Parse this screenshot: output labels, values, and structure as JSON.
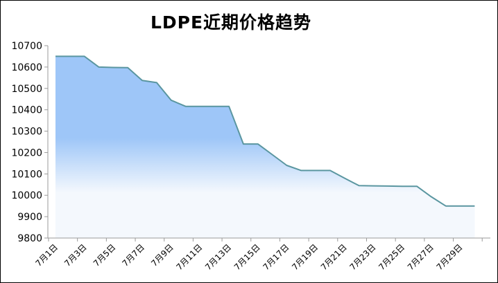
{
  "chart_data": {
    "type": "area",
    "title": "LDPE近期价格趋势",
    "xlabel": "",
    "ylabel": "",
    "ylim": [
      9800,
      10700
    ],
    "yticks": [
      9800,
      9900,
      10000,
      10100,
      10200,
      10300,
      10400,
      10500,
      10600,
      10700
    ],
    "x_tick_labels": [
      "7月1日",
      "7月3日",
      "7月5日",
      "7月7日",
      "7月9日",
      "7月11日",
      "7月13日",
      "7月15日",
      "7月17日",
      "7月19日",
      "7月21日",
      "7月23日",
      "7月25日",
      "7月27日",
      "7月29日"
    ],
    "grid": false,
    "legend": "none",
    "categories": [
      "7月1日",
      "7月2日",
      "7月3日",
      "7月4日",
      "7月5日",
      "7月6日",
      "7月7日",
      "7月8日",
      "7月9日",
      "7月10日",
      "7月11日",
      "7月12日",
      "7月13日",
      "7月14日",
      "7月15日",
      "7月16日",
      "7月17日",
      "7月18日",
      "7月19日",
      "7月20日",
      "7月21日",
      "7月22日",
      "7月23日",
      "7月24日",
      "7月25日",
      "7月26日",
      "7月27日",
      "7月28日",
      "7月29日",
      "7月30日"
    ],
    "series": [
      {
        "values": [
          10650,
          10650,
          10650,
          10600,
          10598,
          10597,
          10537,
          10527,
          10445,
          10416,
          10416,
          10416,
          10416,
          10240,
          10240,
          10190,
          10140,
          10116,
          10116,
          10116,
          10080,
          10045,
          10044,
          10043,
          10042,
          10042,
          9993,
          9950,
          9950,
          9950
        ],
        "line_color": "#5a96a0",
        "fill_top_color": "#9ec6f8",
        "fill_bottom_color": "#f4f8fd"
      }
    ]
  }
}
